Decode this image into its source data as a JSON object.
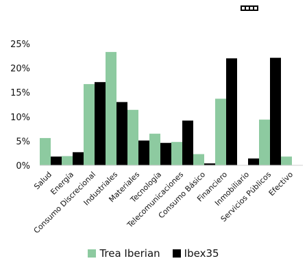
{
  "colors": {
    "trea": "#8dcaa0",
    "ibex": "#000000",
    "axis": "#cfcfcf",
    "text": "#111111"
  },
  "logo": {
    "icon": "small-logo-mark"
  },
  "chart_data": {
    "type": "bar",
    "categories": [
      "Salud",
      "Energía",
      "Consumo Discrecional",
      "Industriales",
      "Materiales",
      "Tecnología",
      "Telecomunicaciones",
      "Consumo Básico",
      "Financiero",
      "Inmobiliario",
      "Servicios Públicos",
      "Efectivo"
    ],
    "series": [
      {
        "name": "Trea Iberian",
        "values": [
          5.6,
          1.9,
          16.7,
          23.3,
          11.4,
          6.5,
          4.8,
          2.3,
          13.7,
          0.0,
          9.4,
          1.8
        ]
      },
      {
        "name": "Ibex35",
        "values": [
          1.8,
          2.7,
          17.1,
          13.0,
          5.1,
          4.6,
          9.2,
          0.4,
          22.0,
          1.4,
          22.1,
          0.0
        ]
      }
    ],
    "yticks": [
      "0%",
      "5%",
      "10%",
      "15%",
      "20%",
      "25%"
    ],
    "ylim": [
      0,
      25
    ],
    "legend_position": "bottom",
    "grid": false
  }
}
